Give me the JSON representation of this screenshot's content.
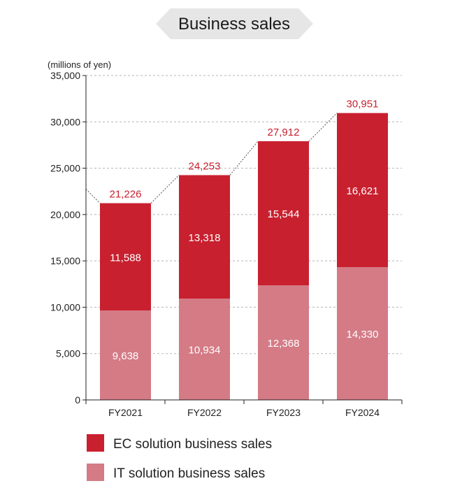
{
  "chart_data": {
    "type": "bar",
    "stacked": true,
    "title": "Business sales",
    "unit_label": "(millions of yen)",
    "categories": [
      "FY2021",
      "FY2022",
      "FY2023",
      "FY2024"
    ],
    "series": [
      {
        "name": "IT solution business sales",
        "values": [
          9638,
          10934,
          12368,
          14330
        ],
        "labels": [
          "9,638",
          "10,934",
          "12,368",
          "14,330"
        ],
        "color": "#d47b86"
      },
      {
        "name": "EC solution business sales",
        "values": [
          11588,
          13318,
          15544,
          16621
        ],
        "labels": [
          "11,588",
          "13,318",
          "15,544",
          "16,621"
        ],
        "color": "#c8202f"
      }
    ],
    "totals": [
      21226,
      24253,
      27912,
      30951
    ],
    "total_labels": [
      "21,226",
      "24,253",
      "27,912",
      "30,951"
    ],
    "ylim": [
      0,
      35000
    ],
    "yticks": [
      0,
      5000,
      10000,
      15000,
      20000,
      25000,
      30000,
      35000
    ],
    "ytick_labels": [
      "0",
      "5,000",
      "10,000",
      "15,000",
      "20,000",
      "25,000",
      "30,000",
      "35,000"
    ],
    "grid": true,
    "legend_position": "bottom"
  }
}
